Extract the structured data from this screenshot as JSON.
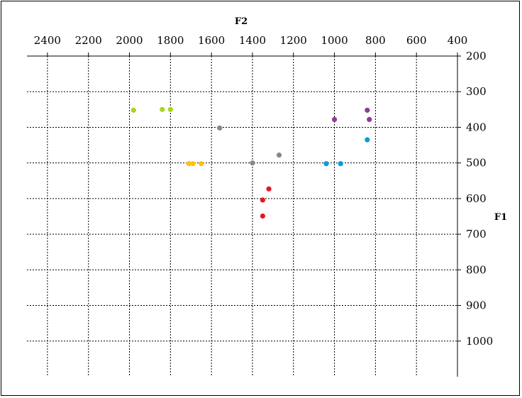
{
  "chart_data": {
    "type": "scatter",
    "title": "",
    "xlabel": "F2",
    "ylabel": "F1",
    "x_axis": {
      "position": "top",
      "reversed": true,
      "ticks": [
        2400,
        2200,
        2000,
        1800,
        1600,
        1400,
        1200,
        1000,
        800,
        600,
        400
      ]
    },
    "y_axis": {
      "position": "right",
      "reversed": true,
      "ticks": [
        200,
        300,
        400,
        500,
        600,
        700,
        800,
        900,
        1000
      ]
    },
    "xlim": [
      2500,
      400
    ],
    "ylim": [
      200,
      1100
    ],
    "grid": "dotted",
    "legend": "none",
    "series": [
      {
        "color": "#a6d61d",
        "points": [
          [
            1980,
            352
          ],
          [
            1840,
            350
          ],
          [
            1800,
            350
          ]
        ]
      },
      {
        "color": "#fec20f",
        "points": [
          [
            1710,
            502
          ],
          [
            1690,
            502
          ],
          [
            1650,
            502
          ]
        ]
      },
      {
        "color": "#888888",
        "points": [
          [
            1560,
            402
          ],
          [
            1400,
            500
          ],
          [
            1270,
            478
          ]
        ]
      },
      {
        "color": "#e8171f",
        "points": [
          [
            1320,
            573
          ],
          [
            1350,
            604
          ],
          [
            1350,
            649
          ]
        ]
      },
      {
        "color": "#009ddb",
        "points": [
          [
            1040,
            502
          ],
          [
            970,
            502
          ],
          [
            840,
            435
          ]
        ]
      },
      {
        "color": "#8e3c97",
        "points": [
          [
            1000,
            378
          ],
          [
            840,
            352
          ],
          [
            830,
            378
          ]
        ]
      }
    ]
  }
}
